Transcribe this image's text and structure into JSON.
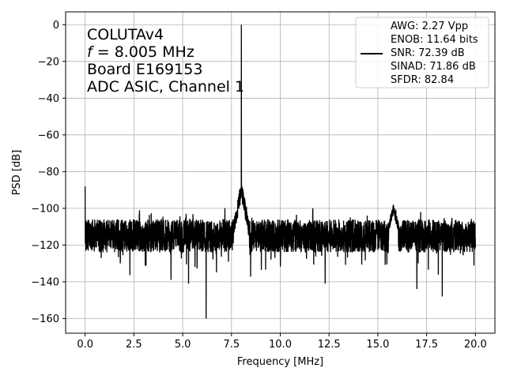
{
  "chart_data": {
    "type": "line",
    "xlabel": "Frequency [MHz]",
    "ylabel": "PSD [dB]",
    "xlim": [
      -1.0,
      21.0
    ],
    "ylim": [
      -168,
      7
    ],
    "xticks": [
      0.0,
      2.5,
      5.0,
      7.5,
      10.0,
      12.5,
      15.0,
      17.5,
      20.0
    ],
    "xtick_labels": [
      "0.0",
      "2.5",
      "5.0",
      "7.5",
      "10.0",
      "12.5",
      "15.0",
      "17.5",
      "20.0"
    ],
    "yticks": [
      0,
      -20,
      -40,
      -60,
      -80,
      -100,
      -120,
      -140,
      -160
    ],
    "ytick_labels": [
      "0",
      "−20",
      "−40",
      "−60",
      "−80",
      "−100",
      "−120",
      "−140",
      "−160"
    ],
    "grid": true,
    "annotation": {
      "line1": "COLUTAv4",
      "line2_prefix": "f",
      "line2_rest": " = 8.005 MHz",
      "line3": "Board E169153",
      "line4": "ADC ASIC, Channel  1"
    },
    "legend": {
      "placement": "top-right",
      "lines": [
        "AWG: 2.27 Vpp",
        "ENOB: 11.64 bits",
        "SNR: 72.39 dB",
        "SINAD: 71.86 dB",
        "SFDR: 82.84"
      ],
      "line_color": "#000000"
    },
    "series": [
      {
        "color": "#000000",
        "noise_floor": -115,
        "x_start": 0.0,
        "x_end": 20.0,
        "features": [
          {
            "x": 0.0,
            "y": -88
          },
          {
            "x": 8.005,
            "y": 0
          },
          {
            "x": 6.2,
            "y": -160
          },
          {
            "x": 18.3,
            "y": -148
          },
          {
            "x": 17.0,
            "y": -144
          },
          {
            "x": 15.8,
            "y": -98
          },
          {
            "x": 12.3,
            "y": -141
          },
          {
            "x": 5.3,
            "y": -141
          },
          {
            "x": 4.4,
            "y": -139
          }
        ]
      }
    ]
  }
}
